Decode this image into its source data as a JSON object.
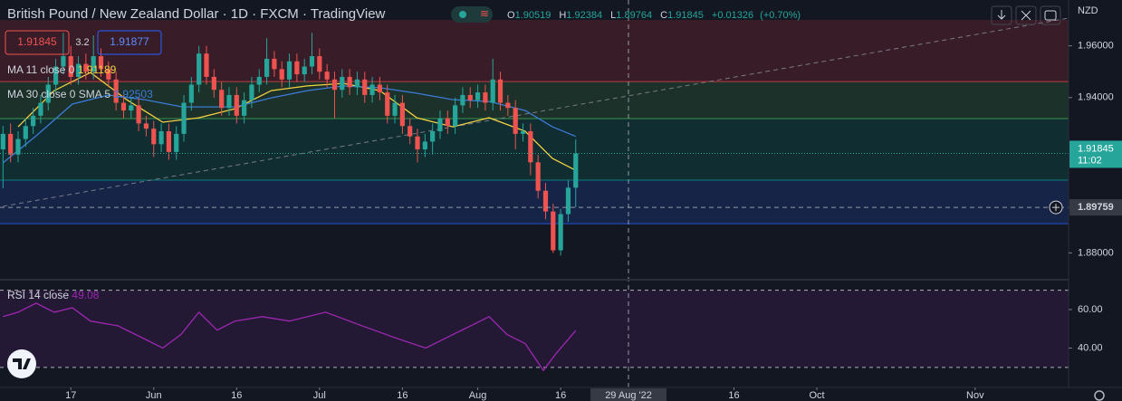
{
  "chart_data": {
    "type": "candlestick",
    "title": "British Pound / New Zealand Dollar · 1D · FXCM · TradingView",
    "ohlc": [
      {
        "label": "O",
        "value": 1.90519
      },
      {
        "label": "H",
        "value": 1.92384
      },
      {
        "label": "L",
        "value": 1.89764
      },
      {
        "label": "C",
        "value": 1.91845
      }
    ],
    "change": "+0.01326",
    "change_pct": "(+0.70%)",
    "bid": 1.91845,
    "spread": 3.2,
    "ask": 1.91877,
    "currency": "NZD",
    "countdown": "11:02",
    "up_color": "#26a69a",
    "down_color": "#ef5350",
    "xlim": [
      -0.4,
      141.4
    ],
    "ylim": [
      1.87,
      1.9777
    ],
    "yticks": [
      {
        "value": 1.96,
        "label": "1.96000"
      },
      {
        "value": 1.94,
        "label": "1.94000"
      },
      {
        "value": 1.88,
        "label": "1.88000"
      }
    ],
    "xticks": [
      {
        "value": 9,
        "label": "17"
      },
      {
        "value": 20,
        "label": "Jun"
      },
      {
        "value": 31,
        "label": "16"
      },
      {
        "value": 42,
        "label": "Jul"
      },
      {
        "value": 53,
        "label": "16"
      },
      {
        "value": 63,
        "label": "Aug"
      },
      {
        "value": 74,
        "label": "16"
      },
      {
        "value": 97,
        "label": "16"
      },
      {
        "value": 108,
        "label": "Oct"
      },
      {
        "value": 129,
        "label": "Nov"
      }
    ],
    "crosshair": {
      "x": 83,
      "x_label": "29 Aug '22",
      "price": 1.89759
    },
    "zones": [
      {
        "from": 1.97,
        "to": 1.9462,
        "color": "#f23645"
      },
      {
        "from": 1.9462,
        "to": 1.9319,
        "color": "#4caf50"
      },
      {
        "from": 1.9319,
        "to": 1.9081,
        "color": "#089981"
      },
      {
        "from": 1.9081,
        "to": 1.8913,
        "color": "#2962ff"
      }
    ],
    "trendline": {
      "x": [
        0,
        141.4
      ],
      "values": [
        1.898,
        1.9707
      ]
    },
    "candles": [
      [
        1.92,
        1.929,
        1.905,
        1.926
      ],
      [
        1.926,
        1.93,
        1.915,
        1.918
      ],
      [
        1.918,
        1.927,
        1.915,
        1.924
      ],
      [
        1.924,
        1.932,
        1.921,
        1.929
      ],
      [
        1.929,
        1.936,
        1.926,
        1.933
      ],
      [
        1.933,
        1.941,
        1.93,
        1.938
      ],
      [
        1.938,
        1.948,
        1.935,
        1.945
      ],
      [
        1.945,
        1.955,
        1.942,
        1.952
      ],
      [
        1.952,
        1.965,
        1.949,
        1.956
      ],
      [
        1.956,
        1.96,
        1.945,
        1.948
      ],
      [
        1.948,
        1.956,
        1.945,
        1.953
      ],
      [
        1.953,
        1.957,
        1.947,
        1.95
      ],
      [
        1.95,
        1.964,
        1.947,
        1.956
      ],
      [
        1.956,
        1.959,
        1.948,
        1.951
      ],
      [
        1.951,
        1.954,
        1.944,
        1.947
      ],
      [
        1.947,
        1.95,
        1.935,
        1.938
      ],
      [
        1.938,
        1.941,
        1.932,
        1.935
      ],
      [
        1.935,
        1.94,
        1.932,
        1.937
      ],
      [
        1.937,
        1.94,
        1.927,
        1.93
      ],
      [
        1.93,
        1.933,
        1.925,
        1.928
      ],
      [
        1.928,
        1.931,
        1.917,
        1.922
      ],
      [
        1.922,
        1.93,
        1.919,
        1.927
      ],
      [
        1.927,
        1.93,
        1.916,
        1.919
      ],
      [
        1.919,
        1.929,
        1.916,
        1.926
      ],
      [
        1.926,
        1.941,
        1.923,
        1.938
      ],
      [
        1.938,
        1.948,
        1.935,
        1.945
      ],
      [
        1.945,
        1.96,
        1.942,
        1.957
      ],
      [
        1.957,
        1.96,
        1.945,
        1.948
      ],
      [
        1.948,
        1.951,
        1.94,
        1.943
      ],
      [
        1.943,
        1.946,
        1.933,
        1.936
      ],
      [
        1.936,
        1.944,
        1.933,
        1.941
      ],
      [
        1.941,
        1.944,
        1.93,
        1.933
      ],
      [
        1.933,
        1.942,
        1.93,
        1.939
      ],
      [
        1.939,
        1.948,
        1.936,
        1.945
      ],
      [
        1.945,
        1.951,
        1.942,
        1.948
      ],
      [
        1.948,
        1.963,
        1.945,
        1.955
      ],
      [
        1.955,
        1.958,
        1.948,
        1.951
      ],
      [
        1.951,
        1.954,
        1.944,
        1.947
      ],
      [
        1.947,
        1.957,
        1.944,
        1.954
      ],
      [
        1.954,
        1.957,
        1.946,
        1.949
      ],
      [
        1.949,
        1.955,
        1.946,
        1.952
      ],
      [
        1.952,
        1.965,
        1.949,
        1.956
      ],
      [
        1.956,
        1.959,
        1.947,
        1.95
      ],
      [
        1.95,
        1.953,
        1.944,
        1.947
      ],
      [
        1.947,
        1.95,
        1.932,
        1.943
      ],
      [
        1.943,
        1.951,
        1.94,
        1.948
      ],
      [
        1.948,
        1.951,
        1.941,
        1.944
      ],
      [
        1.944,
        1.95,
        1.941,
        1.947
      ],
      [
        1.947,
        1.95,
        1.938,
        1.941
      ],
      [
        1.941,
        1.948,
        1.938,
        1.945
      ],
      [
        1.945,
        1.948,
        1.939,
        1.942
      ],
      [
        1.942,
        1.945,
        1.93,
        1.933
      ],
      [
        1.933,
        1.941,
        1.93,
        1.938
      ],
      [
        1.938,
        1.941,
        1.926,
        1.929
      ],
      [
        1.929,
        1.932,
        1.922,
        1.925
      ],
      [
        1.925,
        1.928,
        1.915,
        1.92
      ],
      [
        1.92,
        1.926,
        1.917,
        1.923
      ],
      [
        1.923,
        1.93,
        1.918,
        1.927
      ],
      [
        1.927,
        1.935,
        1.924,
        1.932
      ],
      [
        1.932,
        1.935,
        1.926,
        1.929
      ],
      [
        1.929,
        1.94,
        1.926,
        1.937
      ],
      [
        1.937,
        1.944,
        1.934,
        1.941
      ],
      [
        1.941,
        1.944,
        1.936,
        1.939
      ],
      [
        1.939,
        1.945,
        1.936,
        1.942
      ],
      [
        1.942,
        1.945,
        1.935,
        1.938
      ],
      [
        1.938,
        1.955,
        1.935,
        1.947
      ],
      [
        1.947,
        1.95,
        1.935,
        1.938
      ],
      [
        1.938,
        1.941,
        1.933,
        1.936
      ],
      [
        1.936,
        1.939,
        1.92,
        1.926
      ],
      [
        1.926,
        1.93,
        1.923,
        1.927
      ],
      [
        1.927,
        1.93,
        1.91,
        1.915
      ],
      [
        1.915,
        1.918,
        1.901,
        1.904
      ],
      [
        1.904,
        1.907,
        1.893,
        1.896
      ],
      [
        1.896,
        1.899,
        1.88,
        1.881
      ],
      [
        1.881,
        1.897,
        1.879,
        1.895
      ],
      [
        1.895,
        1.908,
        1.892,
        1.90519
      ],
      [
        1.90519,
        1.92384,
        1.89764,
        1.91845
      ]
    ],
    "series": [
      {
        "name": "MA 11 close 0",
        "value": 1.91189,
        "color": "#f5d142",
        "x": [
          2,
          6.8,
          11.6,
          16.4,
          21.2,
          26,
          30.8,
          35.6,
          40.4,
          45.2,
          50,
          54.9,
          59.7,
          64.5,
          69.3,
          72.9,
          76
        ],
        "values": [
          1.9287,
          1.9427,
          1.9497,
          1.9392,
          1.9305,
          1.9322,
          1.9357,
          1.9427,
          1.9445,
          1.9455,
          1.9427,
          1.9322,
          1.9287,
          1.9322,
          1.927,
          1.9165,
          1.9119
        ]
      },
      {
        "name": "MA 30 close 0 SMA 5",
        "value": 1.92503,
        "color": "#3d7bd9",
        "x": [
          0,
          4.4,
          9.2,
          14,
          18.8,
          23.8,
          30.8,
          35.6,
          40.4,
          45.2,
          50,
          54.9,
          59.7,
          64.5,
          69.3,
          72.9,
          76
        ],
        "values": [
          1.9148,
          1.9252,
          1.9375,
          1.941,
          1.9392,
          1.9364,
          1.9364,
          1.9399,
          1.9427,
          1.9445,
          1.9438,
          1.9417,
          1.9392,
          1.9385,
          1.935,
          1.9287,
          1.925
        ]
      }
    ],
    "rsi": {
      "name": "RSI 14 close",
      "value": 49.08,
      "color": "#9c27b0",
      "ylim": [
        21,
        75
      ],
      "yticks": [
        {
          "value": 60,
          "label": "60.00"
        },
        {
          "value": 40,
          "label": "40.00"
        }
      ],
      "levels": [
        70,
        30
      ],
      "x": [
        0,
        2,
        4.4,
        6.8,
        9.2,
        11.6,
        15.2,
        18.8,
        21.2,
        23.6,
        26,
        28.4,
        30.8,
        34.4,
        38,
        42.8,
        47.6,
        52.5,
        56.1,
        59.7,
        62.1,
        64.5,
        66.9,
        69.3,
        71.7,
        73.5,
        76
      ],
      "values": [
        56.3,
        58.6,
        63.3,
        58.6,
        60.9,
        54,
        51.6,
        44.7,
        40,
        47,
        58.6,
        49.3,
        54,
        56.3,
        54,
        58.6,
        51.6,
        44.7,
        40,
        47,
        51.6,
        56.3,
        47,
        42.3,
        28.4,
        37.7,
        49.08
      ]
    }
  }
}
